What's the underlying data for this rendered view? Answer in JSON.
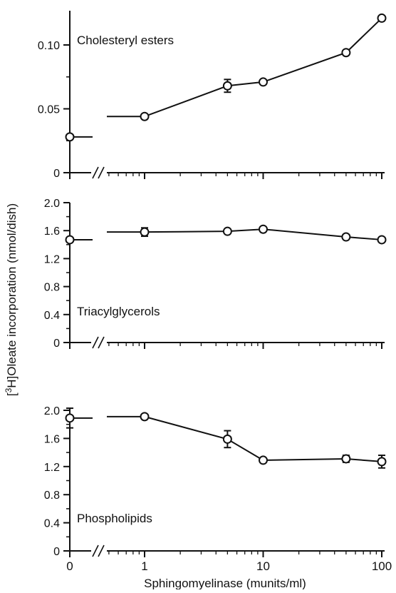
{
  "chart_data": {
    "type": "line",
    "figure": {
      "ylabel_prefix": "[",
      "ylabel_superscript": "3",
      "ylabel_suffix": "H]Oleate incorporation (nmol/dish)",
      "xlabel": "Sphingomyelinase (munits/ml)",
      "x_scale": "broken axis: 0, then log scale from 1 to 100",
      "x_ticks": [
        {
          "value": 0,
          "label": "0"
        },
        {
          "value": 1,
          "label": "1"
        },
        {
          "value": 10,
          "label": "10"
        },
        {
          "value": 100,
          "label": "100"
        }
      ]
    },
    "panels": [
      {
        "title": "Cholesteryl esters",
        "title_placement": "top-left",
        "ylim": [
          0,
          0.12
        ],
        "yticks": [
          {
            "value": 0,
            "label": "0"
          },
          {
            "value": 0.05,
            "label": "0.05"
          },
          {
            "value": 0.1,
            "label": "0.10"
          }
        ],
        "points": [
          {
            "x": 0,
            "y": 0.028,
            "err": 0.0
          },
          {
            "x": 1,
            "y": 0.044,
            "err": 0.0
          },
          {
            "x": 5,
            "y": 0.068,
            "err": 0.005
          },
          {
            "x": 10,
            "y": 0.071,
            "err": 0.0
          },
          {
            "x": 50,
            "y": 0.094,
            "err": 0.0
          },
          {
            "x": 100,
            "y": 0.121,
            "err": 0.0
          }
        ]
      },
      {
        "title": "Triacylglycerols",
        "title_placement": "bottom-left",
        "ylim": [
          0,
          2.0
        ],
        "yticks": [
          {
            "value": 0,
            "label": "0"
          },
          {
            "value": 0.4,
            "label": "0.4"
          },
          {
            "value": 0.8,
            "label": "0.8"
          },
          {
            "value": 1.2,
            "label": "1.2"
          },
          {
            "value": 1.6,
            "label": "1.6"
          },
          {
            "value": 2.0,
            "label": "2.0"
          }
        ],
        "points": [
          {
            "x": 0,
            "y": 1.47,
            "err": 0.0
          },
          {
            "x": 1,
            "y": 1.58,
            "err": 0.06
          },
          {
            "x": 5,
            "y": 1.59,
            "err": 0.0
          },
          {
            "x": 10,
            "y": 1.62,
            "err": 0.0
          },
          {
            "x": 50,
            "y": 1.51,
            "err": 0.0
          },
          {
            "x": 100,
            "y": 1.47,
            "err": 0.0
          }
        ]
      },
      {
        "title": "Phospholipids",
        "title_placement": "bottom-left",
        "ylim": [
          0,
          2.0
        ],
        "yticks": [
          {
            "value": 0,
            "label": "0"
          },
          {
            "value": 0.4,
            "label": "0.4"
          },
          {
            "value": 0.8,
            "label": "0.8"
          },
          {
            "value": 1.2,
            "label": "1.2"
          },
          {
            "value": 1.6,
            "label": "1.6"
          },
          {
            "value": 2.0,
            "label": "2.0"
          }
        ],
        "points": [
          {
            "x": 0,
            "y": 1.89,
            "err": 0.14
          },
          {
            "x": 1,
            "y": 1.91,
            "err": 0.0
          },
          {
            "x": 5,
            "y": 1.59,
            "err": 0.12
          },
          {
            "x": 10,
            "y": 1.29,
            "err": 0.0
          },
          {
            "x": 50,
            "y": 1.31,
            "err": 0.05
          },
          {
            "x": 100,
            "y": 1.27,
            "err": 0.09
          }
        ]
      }
    ]
  }
}
